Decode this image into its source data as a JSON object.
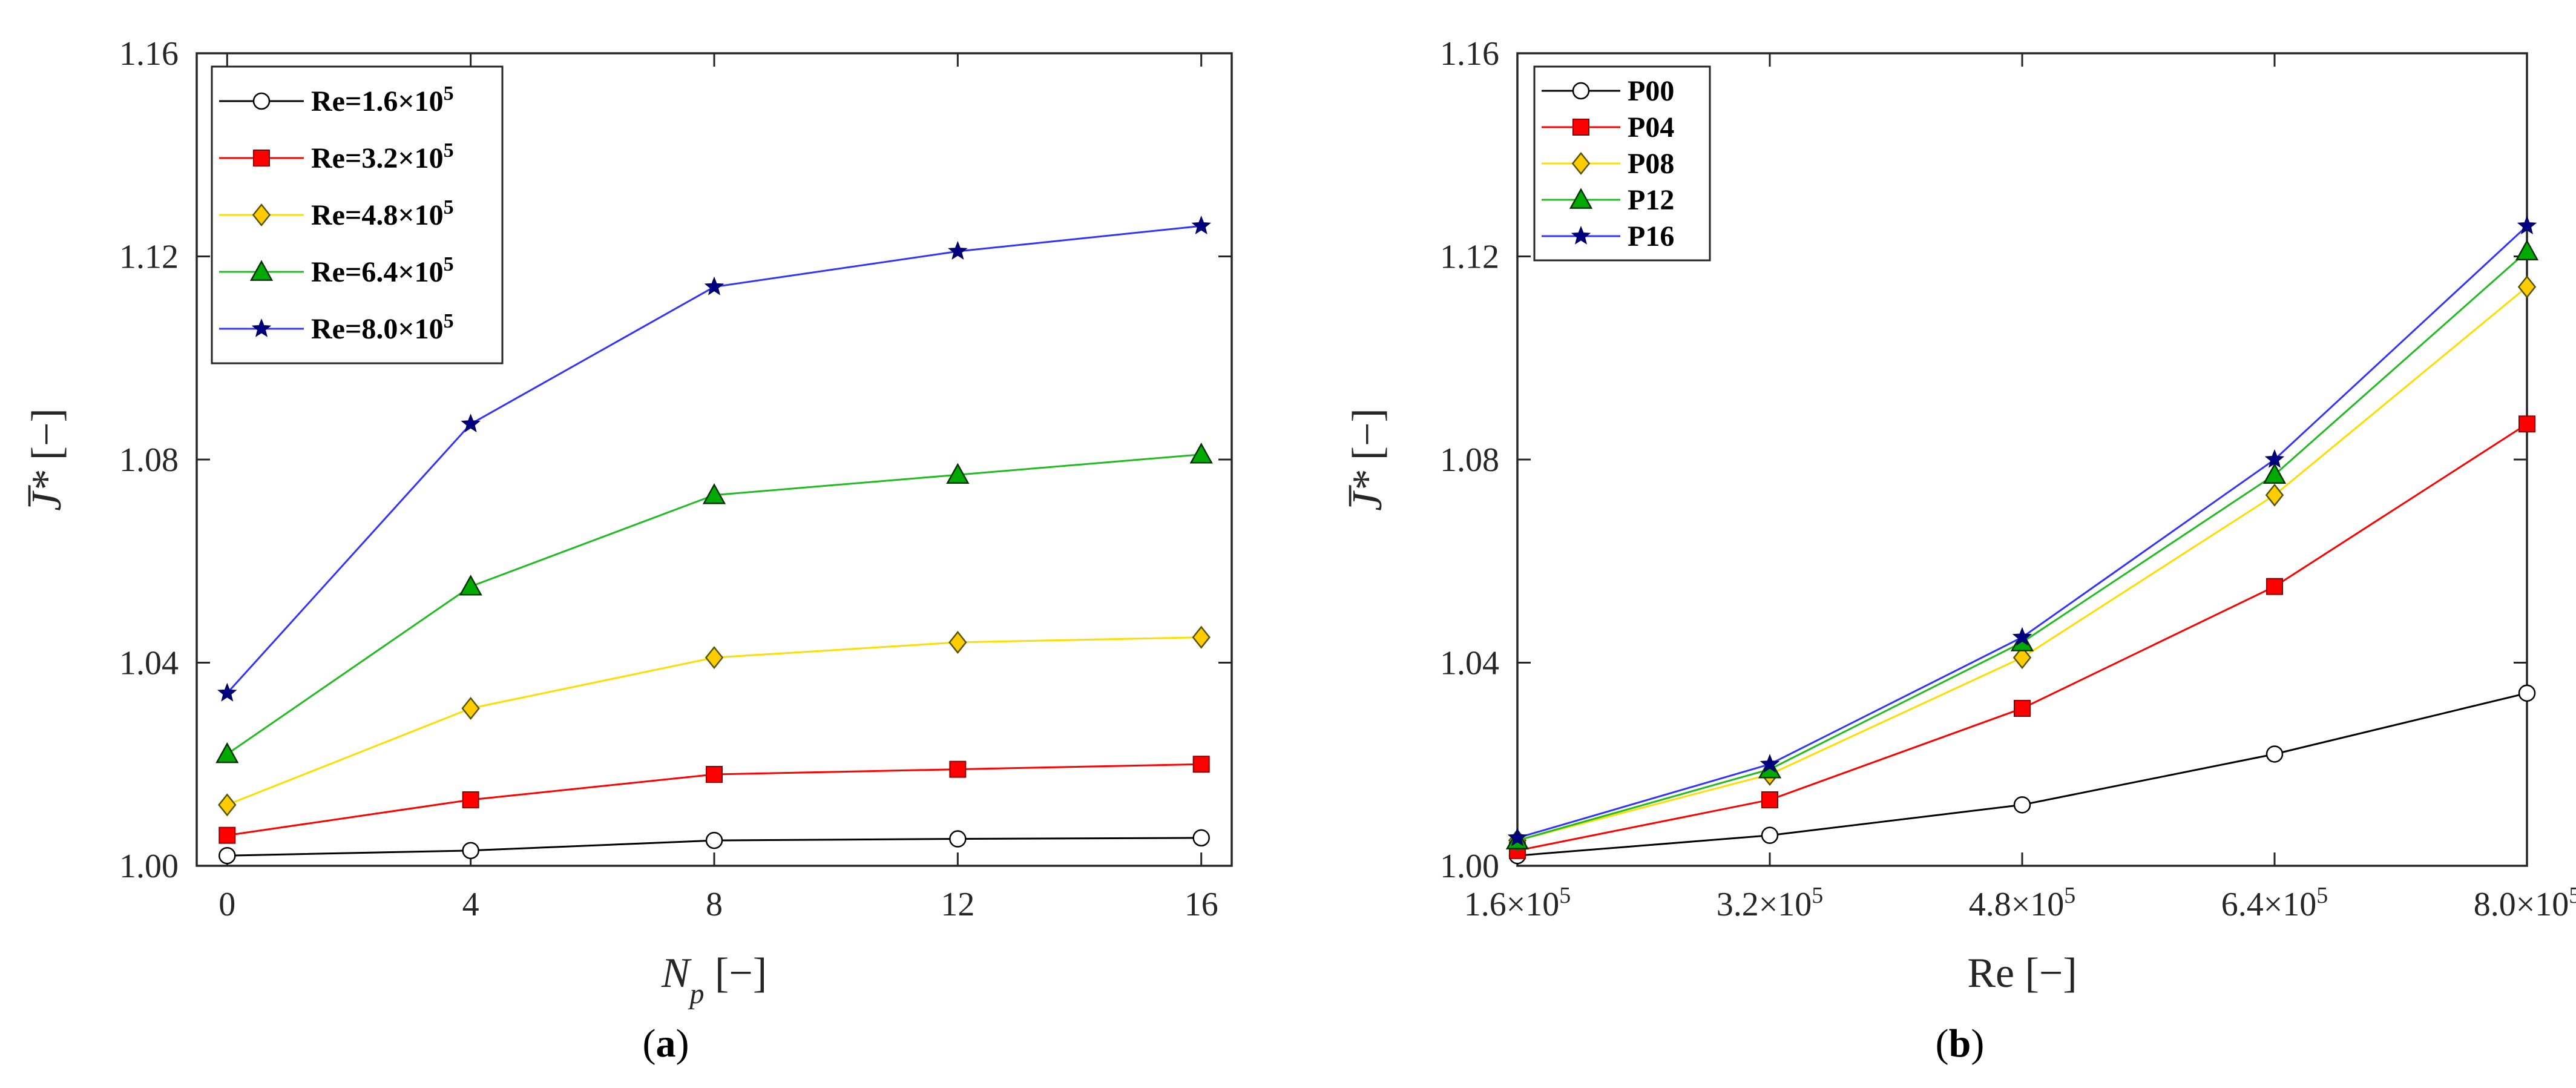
{
  "chart_data": [
    {
      "type": "line",
      "panel": "a",
      "panel_label": "(a)",
      "xlabel": "N",
      "xlabel_sub": "p",
      "xlabel_unit": "[−]",
      "ylabel": "J̅*",
      "ylabel_unit": "[−]",
      "x": [
        0,
        4,
        8,
        12,
        16
      ],
      "x_tick_labels": [
        "0",
        "4",
        "8",
        "12",
        "16"
      ],
      "xlim": [
        -0.5,
        16.5
      ],
      "ylim": [
        1.0,
        1.16
      ],
      "y_ticks": [
        1.0,
        1.04,
        1.08,
        1.12,
        1.16
      ],
      "y_tick_labels": [
        "1.00",
        "1.04",
        "1.08",
        "1.12",
        "1.16"
      ],
      "legend_location": "top-left",
      "series": [
        {
          "name": "Re=1.6×10",
          "exp": "5",
          "color": "#000000",
          "marker": "circle",
          "fill": "#ffffff",
          "values": [
            1.002,
            1.003,
            1.005,
            1.0053,
            1.0055
          ]
        },
        {
          "name": "Re=3.2×10",
          "exp": "5",
          "color": "#ff0000",
          "marker": "square",
          "fill": "#ff0000",
          "values": [
            1.006,
            1.013,
            1.018,
            1.019,
            1.02
          ]
        },
        {
          "name": "Re=4.8×10",
          "exp": "5",
          "color": "#ffdd00",
          "marker": "diamond",
          "fill": "#ffcc00",
          "values": [
            1.012,
            1.031,
            1.041,
            1.044,
            1.045
          ]
        },
        {
          "name": "Re=6.4×10",
          "exp": "5",
          "color": "#22bb22",
          "marker": "triangle",
          "fill": "#00aa00",
          "values": [
            1.022,
            1.055,
            1.073,
            1.077,
            1.081
          ]
        },
        {
          "name": "Re=8.0×10",
          "exp": "5",
          "color": "#3333ff",
          "marker": "star",
          "fill": "#000080",
          "values": [
            1.034,
            1.087,
            1.114,
            1.121,
            1.126
          ]
        }
      ]
    },
    {
      "type": "line",
      "panel": "b",
      "panel_label": "(b)",
      "xlabel": "Re",
      "xlabel_unit": "[−]",
      "ylabel": "J̅*",
      "ylabel_unit": "[−]",
      "x": [
        1.6,
        3.2,
        4.8,
        6.4,
        8.0
      ],
      "x_tick_labels": [
        "1.6×10",
        "3.2×10",
        "4.8×10",
        "6.4×10",
        "8.0×10"
      ],
      "x_tick_exp": "5",
      "xlim": [
        1.6,
        8.0
      ],
      "ylim": [
        1.0,
        1.16
      ],
      "y_ticks": [
        1.0,
        1.04,
        1.08,
        1.12,
        1.16
      ],
      "y_tick_labels": [
        "1.00",
        "1.04",
        "1.08",
        "1.12",
        "1.16"
      ],
      "legend_location": "top-left",
      "series": [
        {
          "name": "P00",
          "color": "#000000",
          "marker": "circle",
          "fill": "#ffffff",
          "values": [
            1.002,
            1.006,
            1.012,
            1.022,
            1.034
          ]
        },
        {
          "name": "P04",
          "color": "#ff0000",
          "marker": "square",
          "fill": "#ff0000",
          "values": [
            1.003,
            1.013,
            1.031,
            1.055,
            1.087
          ]
        },
        {
          "name": "P08",
          "color": "#ffdd00",
          "marker": "diamond",
          "fill": "#ffcc00",
          "values": [
            1.005,
            1.018,
            1.041,
            1.073,
            1.114
          ]
        },
        {
          "name": "P12",
          "color": "#22bb22",
          "marker": "triangle",
          "fill": "#00aa00",
          "values": [
            1.005,
            1.019,
            1.044,
            1.077,
            1.121
          ]
        },
        {
          "name": "P16",
          "color": "#3333ff",
          "marker": "star",
          "fill": "#000080",
          "values": [
            1.0055,
            1.02,
            1.045,
            1.08,
            1.126
          ]
        }
      ]
    }
  ]
}
